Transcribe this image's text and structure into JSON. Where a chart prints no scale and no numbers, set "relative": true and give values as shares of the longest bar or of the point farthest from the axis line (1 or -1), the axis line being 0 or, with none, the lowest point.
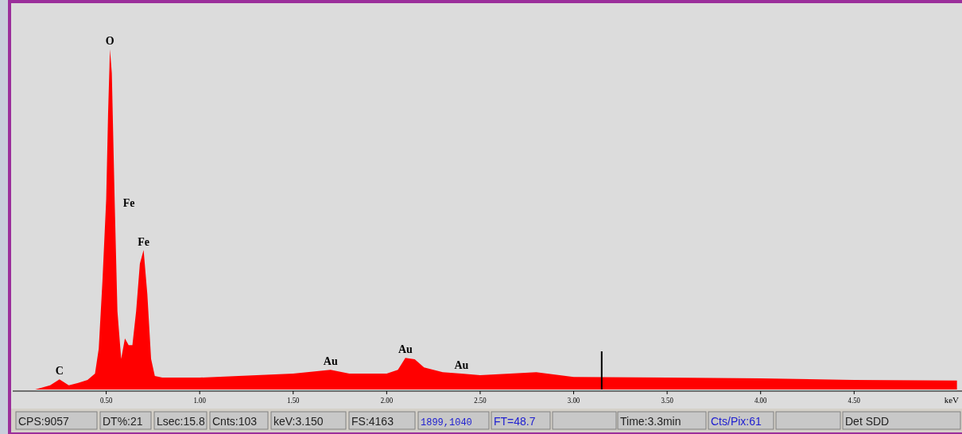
{
  "chart_data": {
    "type": "area",
    "relative": true,
    "xlabel": "keV",
    "x": [
      0.12,
      0.2,
      0.25,
      0.3,
      0.35,
      0.4,
      0.44,
      0.46,
      0.48,
      0.5,
      0.51,
      0.52,
      0.53,
      0.545,
      0.56,
      0.58,
      0.6,
      0.62,
      0.64,
      0.66,
      0.68,
      0.7,
      0.72,
      0.74,
      0.76,
      0.8,
      1.0,
      1.5,
      1.7,
      1.8,
      2.0,
      2.06,
      2.1,
      2.15,
      2.2,
      2.3,
      2.4,
      2.5,
      2.8,
      3.0,
      3.5,
      4.0,
      4.5,
      5.05
    ],
    "series": [
      {
        "color": "#ff0000",
        "values": [
          0,
          0.012,
          0.03,
          0.012,
          0.019,
          0.028,
          0.047,
          0.12,
          0.32,
          0.56,
          0.81,
          1,
          0.93,
          0.56,
          0.23,
          0.09,
          0.15,
          0.13,
          0.13,
          0.23,
          0.37,
          0.41,
          0.28,
          0.09,
          0.04,
          0.035,
          0.035,
          0.047,
          0.058,
          0.047,
          0.047,
          0.058,
          0.093,
          0.089,
          0.065,
          0.051,
          0.047,
          0.042,
          0.051,
          0.037,
          0.035,
          0.033,
          0.028,
          0.026
        ]
      }
    ],
    "xlim": [
      0,
      5.06
    ],
    "xticks": [
      {
        "value": 0.5,
        "label": "0.50"
      },
      {
        "value": 1,
        "label": "1.00"
      },
      {
        "value": 1.5,
        "label": "1.50"
      },
      {
        "value": 2,
        "label": "2.00"
      },
      {
        "value": 2.5,
        "label": "2.50"
      },
      {
        "value": 3,
        "label": "3.00"
      },
      {
        "value": 3.5,
        "label": "3.50"
      },
      {
        "value": 4,
        "label": "4.00"
      },
      {
        "value": 4.5,
        "label": "4.50"
      }
    ],
    "ref_lines": [
      {
        "axis": "x",
        "value": 3.15,
        "color": "#000000"
      }
    ],
    "annotations": [
      {
        "text": "O",
        "x": 0.52,
        "y": 1
      },
      {
        "text": "Fe",
        "x": 0.545,
        "y": 0.56
      },
      {
        "text": "Fe",
        "x": 0.7,
        "y": 0.41
      },
      {
        "text": "C",
        "x": 0.25,
        "y": 0.03
      },
      {
        "text": "Au",
        "x": 1.7,
        "y": 0.058
      },
      {
        "text": "Au",
        "x": 2.1,
        "y": 0.093
      },
      {
        "text": "Au",
        "x": 2.4,
        "y": 0.047
      },
      "CPS:9057",
      "DT%:21",
      "Lsec:15.8",
      "Cnts:103",
      "keV:3.150",
      "FS:4163",
      "1899,1040",
      "FT=48.7",
      "Time:3.3min",
      "Cts/Pix:61",
      "Det SDD"
    ]
  }
}
